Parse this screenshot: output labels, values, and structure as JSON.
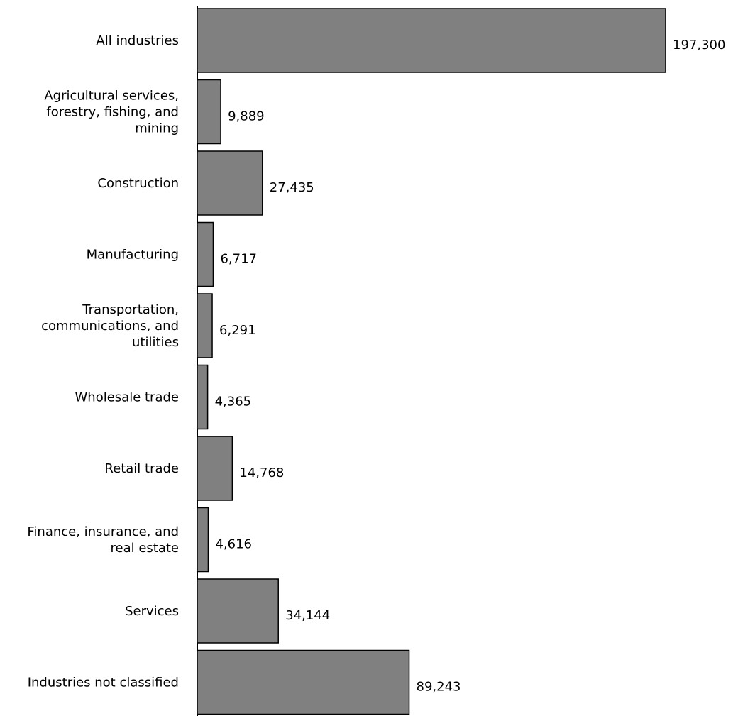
{
  "chart_data": {
    "type": "bar",
    "orientation": "horizontal",
    "title": "",
    "xlabel": "",
    "ylabel": "",
    "grid": false,
    "legend": "none",
    "xlim": [
      0,
      197300
    ],
    "bar_color": "#808080",
    "bar_edge_color": "#000000",
    "categories": [
      "All industries",
      "Agricultural services, forestry, fishing, and mining",
      "Construction",
      "Manufacturing",
      "Transportation, communications, and utilities",
      "Wholesale trade",
      "Retail trade",
      "Finance, insurance, and real estate",
      "Services",
      "Industries not classified"
    ],
    "category_lines": [
      [
        "All industries"
      ],
      [
        "Agricultural services,",
        "forestry, fishing, and",
        "mining"
      ],
      [
        "Construction"
      ],
      [
        "Manufacturing"
      ],
      [
        "Transportation,",
        "communications, and",
        "utilities"
      ],
      [
        "Wholesale trade"
      ],
      [
        "Retail trade"
      ],
      [
        "Finance, insurance, and",
        "real estate"
      ],
      [
        "Services"
      ],
      [
        "Industries not classified"
      ]
    ],
    "values": [
      197300,
      9889,
      27435,
      6717,
      6291,
      4365,
      14768,
      4616,
      34144,
      89243
    ],
    "value_labels": [
      "197,300",
      "9,889",
      "27,435",
      "6,717",
      "6,291",
      "4,365",
      "14,768",
      "4,616",
      "34,144",
      "89,243"
    ]
  }
}
